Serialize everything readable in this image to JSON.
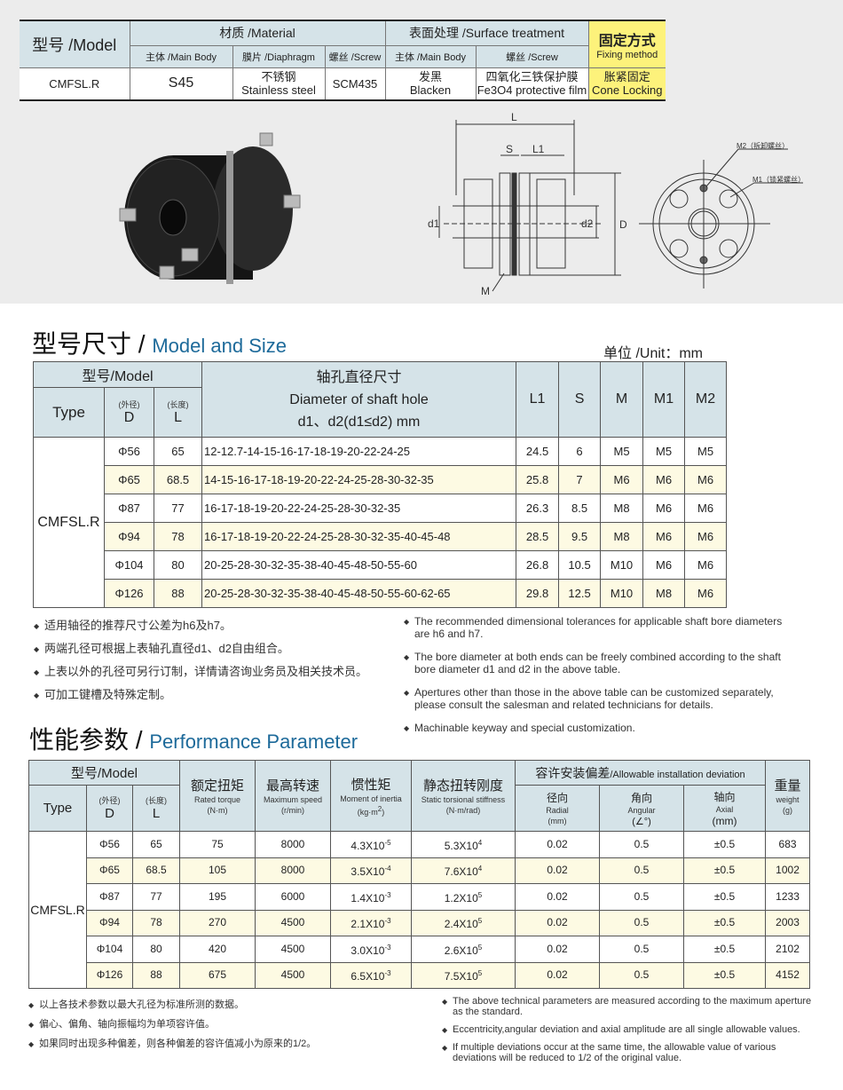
{
  "spec": {
    "model_label": "型号 /Model",
    "material": "材质 /Material",
    "surface": "表面处理 /Surface treatment",
    "fixing_cn": "固定方式",
    "fixing_en": "Fixing method",
    "sub": [
      "主体 /Main Body",
      "膜片 /Diaphragm",
      "螺丝 /Screw",
      "主体 /Main Body",
      "螺丝 /Screw"
    ],
    "model": "CMFSL.R",
    "main_body": "S45",
    "diaphragm_cn": "不锈钢",
    "diaphragm_en": "Stainless steel",
    "screw": "SCM435",
    "surface_body_cn": "发黑",
    "surface_body_en": "Blacken",
    "surface_screw_cn": "四氧化三铁保护膜",
    "surface_screw_en": "Fe3O4 protective film",
    "fixing_value_cn": "胀紧固定",
    "fixing_value_en": "Cone Locking",
    "accent_yellow": "#fdf27b",
    "header_blue": "#d5e3e8"
  },
  "drawing": {
    "L": "L",
    "S": "S",
    "L1": "L1",
    "d1": "d1",
    "d2": "d2",
    "D": "D",
    "M": "M",
    "M2": "M2（拆卸螺丝）",
    "M1": "M1（锁紧螺丝）"
  },
  "size": {
    "title_cn": "型号尺寸 /",
    "title_en": "Model and Size",
    "unit": "单位 /Unit：mm",
    "h_model": "型号/Model",
    "h_type": "Type",
    "h_d_cn": "(外径)",
    "h_d": "D",
    "h_l_cn": "(长度)",
    "h_l": "L",
    "h_hole1": "轴孔直径尺寸",
    "h_hole2": "Diameter of shaft hole",
    "h_hole3": "d1、d2(d1≤d2) mm",
    "h_cols": [
      "L1",
      "S",
      "M",
      "M1",
      "M2"
    ],
    "type": "CMFSL.R",
    "rows": [
      {
        "D": "Φ56",
        "L": "65",
        "holes": "12-12.7-14-15-16-17-18-19-20-22-24-25",
        "L1": "24.5",
        "S": "6",
        "M": "M5",
        "M1": "M5",
        "M2": "M5"
      },
      {
        "D": "Φ65",
        "L": "68.5",
        "holes": "14-15-16-17-18-19-20-22-24-25-28-30-32-35",
        "L1": "25.8",
        "S": "7",
        "M": "M6",
        "M1": "M6",
        "M2": "M6"
      },
      {
        "D": "Φ87",
        "L": "77",
        "holes": "16-17-18-19-20-22-24-25-28-30-32-35",
        "L1": "26.3",
        "S": "8.5",
        "M": "M8",
        "M1": "M6",
        "M2": "M6"
      },
      {
        "D": "Φ94",
        "L": "78",
        "holes": "16-17-18-19-20-22-24-25-28-30-32-35-40-45-48",
        "L1": "28.5",
        "S": "9.5",
        "M": "M8",
        "M1": "M6",
        "M2": "M6"
      },
      {
        "D": "Φ104",
        "L": "80",
        "holes": "20-25-28-30-32-35-38-40-45-48-50-55-60",
        "L1": "26.8",
        "S": "10.5",
        "M": "M10",
        "M1": "M6",
        "M2": "M6"
      },
      {
        "D": "Φ126",
        "L": "88",
        "holes": "20-25-28-30-32-35-38-40-45-48-50-55-60-62-65",
        "L1": "29.8",
        "S": "12.5",
        "M": "M10",
        "M1": "M8",
        "M2": "M6"
      }
    ],
    "notes_cn": [
      "适用轴径的推荐尺寸公差为h6及h7。",
      "两端孔径可根据上表轴孔直径d1、d2自由组合。",
      "上表以外的孔径可另行订制，详情请咨询业务员及相关技术员。",
      "可加工键槽及特殊定制。"
    ],
    "notes_en": [
      "The recommended dimensional tolerances for applicable shaft bore diameters are h6 and h7.",
      "The bore diameter at both ends can be freely combined according to the shaft bore diameter d1 and d2 in the above table.",
      "Apertures other than those in the above table can be customized separately, please consult the salesman and related technicians for details.",
      "Machinable keyway and special customization."
    ]
  },
  "perf": {
    "title_cn": "性能参数 /",
    "title_en": "Performance Parameter",
    "h_model": "型号/Model",
    "h_type": "Type",
    "h_d_cn": "(外径)",
    "h_d": "D",
    "h_l_cn": "(长度)",
    "h_l": "L",
    "h_torque_cn": "额定扭矩",
    "h_torque_en": "Rated torque",
    "h_torque_u": "(N·m)",
    "h_speed_cn": "最高转速",
    "h_speed_en": "Maximum speed",
    "h_speed_u": "(r/min)",
    "h_inertia_cn": "惯性矩",
    "h_inertia_en": "Moment of inertia",
    "h_inertia_u": "(kg·m",
    "h_stiff_cn": "静态扭转刚度",
    "h_stiff_en": "Static torsional stiffness",
    "h_stiff_u": "(N·m/rad)",
    "h_dev": "容许安装偏差",
    "h_dev_en": "/Allowable installation deviation",
    "h_radial_cn": "径向",
    "h_radial_en": "Radial",
    "h_radial_u": "(mm)",
    "h_angular_cn": "角向",
    "h_angular_en": "Angular",
    "h_angular_u": "(∠°)",
    "h_axial_cn": "轴向",
    "h_axial_en": "Axial",
    "h_axial_u": "(mm)",
    "h_weight_cn": "重量",
    "h_weight_en": "weight",
    "h_weight_u": "(g)",
    "type": "CMFSL.R",
    "rows": [
      {
        "D": "Φ56",
        "L": "65",
        "torque": "75",
        "speed": "8000",
        "inertia": "4.3X10",
        "inertia_exp": "-5",
        "stiff": "5.3X10",
        "stiff_exp": "4",
        "radial": "0.02",
        "angular": "0.5",
        "axial": "±0.5",
        "weight": "683"
      },
      {
        "D": "Φ65",
        "L": "68.5",
        "torque": "105",
        "speed": "8000",
        "inertia": "3.5X10",
        "inertia_exp": "-4",
        "stiff": "7.6X10",
        "stiff_exp": "4",
        "radial": "0.02",
        "angular": "0.5",
        "axial": "±0.5",
        "weight": "1002"
      },
      {
        "D": "Φ87",
        "L": "77",
        "torque": "195",
        "speed": "6000",
        "inertia": "1.4X10",
        "inertia_exp": "-3",
        "stiff": "1.2X10",
        "stiff_exp": "5",
        "radial": "0.02",
        "angular": "0.5",
        "axial": "±0.5",
        "weight": "1233"
      },
      {
        "D": "Φ94",
        "L": "78",
        "torque": "270",
        "speed": "4500",
        "inertia": "2.1X10",
        "inertia_exp": "-3",
        "stiff": "2.4X10",
        "stiff_exp": "5",
        "radial": "0.02",
        "angular": "0.5",
        "axial": "±0.5",
        "weight": "2003"
      },
      {
        "D": "Φ104",
        "L": "80",
        "torque": "420",
        "speed": "4500",
        "inertia": "3.0X10",
        "inertia_exp": "-3",
        "stiff": "2.6X10",
        "stiff_exp": "5",
        "radial": "0.02",
        "angular": "0.5",
        "axial": "±0.5",
        "weight": "2102"
      },
      {
        "D": "Φ126",
        "L": "88",
        "torque": "675",
        "speed": "4500",
        "inertia": "6.5X10",
        "inertia_exp": "-3",
        "stiff": "7.5X10",
        "stiff_exp": "5",
        "radial": "0.02",
        "angular": "0.5",
        "axial": "±0.5",
        "weight": "4152"
      }
    ],
    "notes_cn": [
      "以上各技术参数以最大孔径为标准所测的数据。",
      "偏心、偏角、轴向振幅均为单项容许值。",
      "如果同时出现多种偏差，则各种偏差的容许值减小为原来的1/2。"
    ],
    "notes_en": [
      "The above technical parameters are measured according to the maximum aperture as the standard.",
      "Eccentricity,angular deviation and axial amplitude are all single allowable values.",
      "If multiple deviations occur at the same time, the allowable value of various deviations will be reduced to 1/2 of the original value."
    ]
  }
}
